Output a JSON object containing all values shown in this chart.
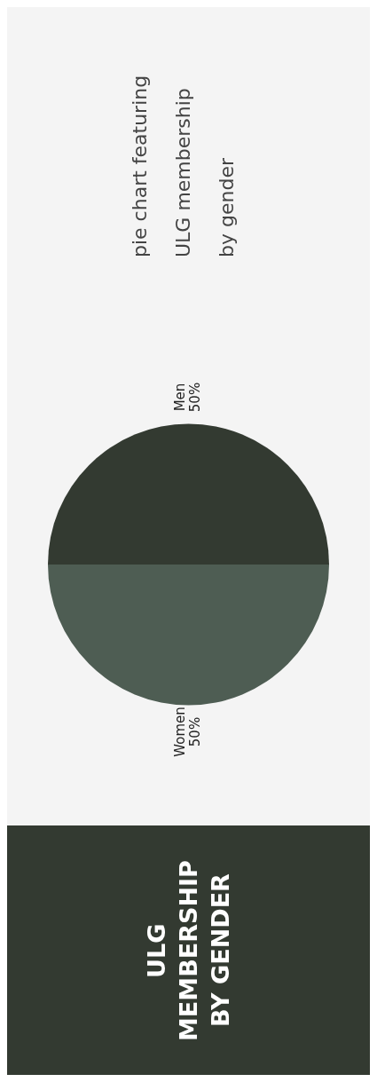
{
  "chart_data": {
    "type": "pie",
    "title": "ULG MEMBERSHIP BY GENDER",
    "categories": [
      "Men",
      "Women"
    ],
    "values": [
      50,
      50
    ],
    "value_labels": [
      "50%",
      "50%"
    ],
    "colors": [
      "#333a31",
      "#4e5d53"
    ],
    "legend": false,
    "annotations": [
      "pie chart featuring ULG membership by gender"
    ]
  }
}
